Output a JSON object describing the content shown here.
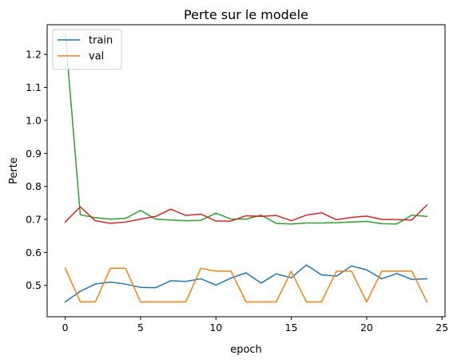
{
  "chart_data": {
    "type": "line",
    "title": "Perte sur le modele",
    "xlabel": "epoch",
    "ylabel": "Perte",
    "xlim": [
      -1.2,
      25.2
    ],
    "ylim": [
      0.405,
      1.29
    ],
    "xticks": [
      0,
      5,
      10,
      15,
      20,
      25
    ],
    "yticks": [
      0.5,
      0.6,
      0.7,
      0.8,
      0.9,
      1.0,
      1.1,
      1.2
    ],
    "ytick_labels": [
      "0.5",
      "0.6",
      "0.7",
      "0.8",
      "0.9",
      "1.0",
      "1.1",
      "1.2"
    ],
    "legend_position": "top-left",
    "x": [
      0,
      1,
      2,
      3,
      4,
      5,
      6,
      7,
      8,
      9,
      10,
      11,
      12,
      13,
      14,
      15,
      16,
      17,
      18,
      19,
      20,
      21,
      22,
      23,
      24
    ],
    "series": [
      {
        "name": "train",
        "color": "#1f77b4",
        "values": [
          0.45,
          0.482,
          0.504,
          0.51,
          0.504,
          0.494,
          0.493,
          0.514,
          0.512,
          0.52,
          0.501,
          0.522,
          0.538,
          0.507,
          0.535,
          0.523,
          0.562,
          0.532,
          0.528,
          0.559,
          0.547,
          0.52,
          0.536,
          0.518,
          0.52
        ]
      },
      {
        "name": "val",
        "color": "#ff7f0e",
        "values": [
          0.552,
          0.45,
          0.45,
          0.552,
          0.552,
          0.45,
          0.45,
          0.45,
          0.45,
          0.552,
          0.543,
          0.543,
          0.45,
          0.45,
          0.45,
          0.543,
          0.45,
          0.45,
          0.543,
          0.543,
          0.45,
          0.543,
          0.543,
          0.543,
          0.45
        ]
      },
      {
        "color": "#2ca02c",
        "values": [
          1.265,
          0.714,
          0.705,
          0.701,
          0.703,
          0.727,
          0.701,
          0.698,
          0.696,
          0.697,
          0.719,
          0.701,
          0.701,
          0.713,
          0.688,
          0.686,
          0.689,
          0.689,
          0.69,
          0.692,
          0.694,
          0.687,
          0.686,
          0.713,
          0.709
        ]
      },
      {
        "color": "#d62728",
        "values": [
          0.692,
          0.738,
          0.696,
          0.688,
          0.692,
          0.701,
          0.709,
          0.731,
          0.712,
          0.716,
          0.695,
          0.695,
          0.711,
          0.709,
          0.712,
          0.696,
          0.713,
          0.72,
          0.699,
          0.706,
          0.71,
          0.7,
          0.699,
          0.698,
          0.744
        ]
      }
    ]
  }
}
